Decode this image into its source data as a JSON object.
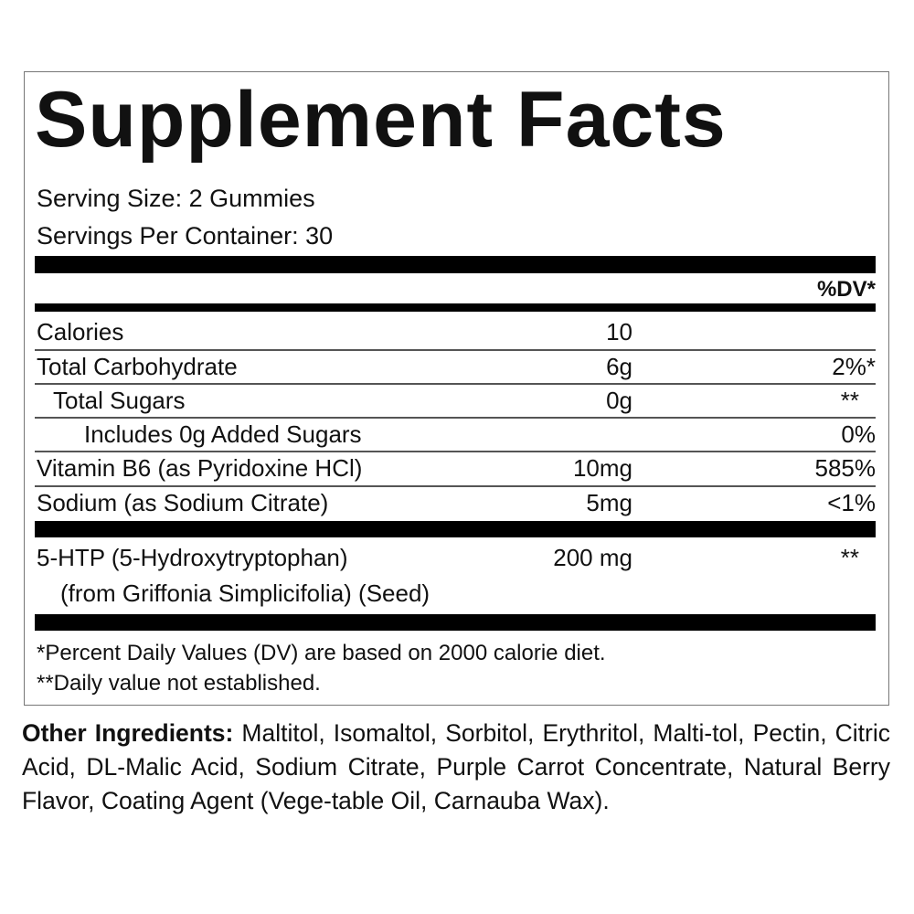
{
  "title": "Supplement Facts",
  "serving_size": "Serving Size: 2 Gummies",
  "servings_per_container": "Servings Per Container: 30",
  "dv_header": "%DV*",
  "rows": [
    {
      "name": "Calories",
      "amount": "10",
      "dv": ""
    },
    {
      "name": "Total Carbohydrate",
      "amount": "6g",
      "dv": "2%*"
    },
    {
      "name": "Total Sugars",
      "amount": "0g",
      "dv": "**"
    },
    {
      "name": "Includes 0g Added Sugars",
      "amount": "",
      "dv": "0%"
    },
    {
      "name": "Vitamin B6 (as Pyridoxine HCl)",
      "amount": "10mg",
      "dv": "585%"
    },
    {
      "name": "Sodium (as Sodium Citrate)",
      "amount": "5mg",
      "dv": "<1%"
    }
  ],
  "special": {
    "name": "5-HTP (5-Hydroxytryptophan)",
    "source": "(from Griffonia Simplicifolia) (Seed)",
    "amount": "200 mg",
    "dv": "**"
  },
  "footnotes": [
    "*Percent Daily Values (DV) are based on 2000 calorie diet.",
    "**Daily value not established."
  ],
  "other_ingredients": {
    "label": "Other Ingredients:",
    "text": "Maltitol, Isomaltol, Sorbitol, Erythritol, Malti-tol, Pectin, Citric Acid, DL-Malic Acid, Sodium Citrate, Purple Carrot Concentrate, Natural Berry Flavor, Coating Agent (Vege-table Oil, Carnauba Wax)."
  }
}
